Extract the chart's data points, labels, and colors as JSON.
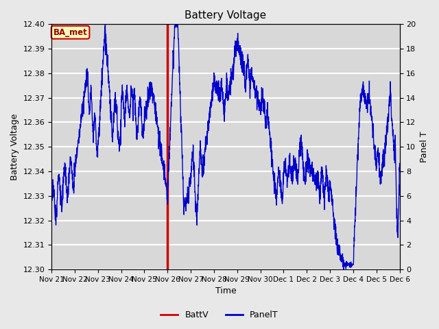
{
  "title": "Battery Voltage",
  "xlabel": "Time",
  "ylabel_left": "Battery Voltage",
  "ylabel_right": "Panel T",
  "ylim_left": [
    12.3,
    12.4
  ],
  "ylim_right": [
    0,
    20
  ],
  "yticks_left": [
    12.3,
    12.31,
    12.32,
    12.33,
    12.34,
    12.35,
    12.36,
    12.37,
    12.38,
    12.39,
    12.4
  ],
  "yticks_right": [
    0,
    2,
    4,
    6,
    8,
    10,
    12,
    14,
    16,
    18,
    20
  ],
  "fig_bg_color": "#e8e8e8",
  "plot_bg_color": "#d8d8d8",
  "grid_color": "#c0c0c0",
  "line_color_battv": "#cc0000",
  "line_color_panelt": "#0000cc",
  "vline_day": 5,
  "annotation_label": "BA_met",
  "legend_labels": [
    "BattV",
    "PanelT"
  ],
  "xtick_labels": [
    "Nov 21",
    "Nov 22",
    "Nov 23",
    "Nov 24",
    "Nov 25",
    "Nov 26",
    "Nov 27",
    "Nov 28",
    "Nov 29",
    "Nov 30",
    "Dec 1",
    "Dec 2",
    "Dec 3",
    "Dec 4",
    "Dec 5",
    "Dec 6"
  ],
  "n_days": 15
}
